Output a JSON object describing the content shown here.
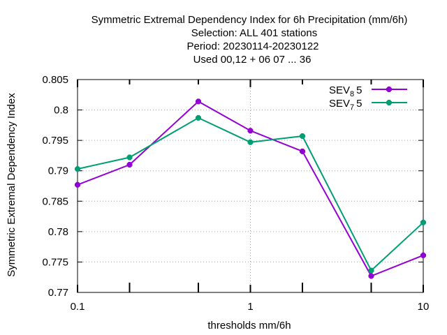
{
  "chart_data": {
    "type": "line",
    "title_lines": [
      "Symmetric Extremal Dependency Index  for 6h Precipitation (mm/6h)",
      "Selection: ALL    401 stations",
      "Period: 20230114-20230122",
      "Used  00,12  + 06 07 ... 36"
    ],
    "xlabel": "thresholds mm/6h",
    "ylabel": "Symmetric Extremal Dependency Index",
    "x_scale": "log",
    "xlim": [
      0.1,
      10
    ],
    "ylim": [
      0.77,
      0.805
    ],
    "x_ticks": [
      {
        "value": 0.1,
        "label": "0.1"
      },
      {
        "value": 1,
        "label": "1"
      },
      {
        "value": 10,
        "label": "10"
      }
    ],
    "x_minor_ticks": [
      0.2,
      0.5,
      2,
      5
    ],
    "y_ticks": [
      {
        "value": 0.77,
        "label": "0.77"
      },
      {
        "value": 0.775,
        "label": "0.775"
      },
      {
        "value": 0.78,
        "label": "0.78"
      },
      {
        "value": 0.785,
        "label": "0.785"
      },
      {
        "value": 0.79,
        "label": "0.79"
      },
      {
        "value": 0.795,
        "label": "0.795"
      },
      {
        "value": 0.8,
        "label": "0.8"
      },
      {
        "value": 0.805,
        "label": "0.805"
      }
    ],
    "grid": true,
    "legend_position": "top-right",
    "series": [
      {
        "name_base": "SEV",
        "name_sub": "8",
        "name_tail": "5",
        "color": "#9400d3",
        "x": [
          0.1,
          0.2,
          0.5,
          1,
          2,
          5,
          10
        ],
        "y": [
          0.7877,
          0.791,
          0.8014,
          0.7966,
          0.7932,
          0.7727,
          0.7761
        ]
      },
      {
        "name_base": "SEV",
        "name_sub": "7",
        "name_tail": "5",
        "color": "#009e73",
        "x": [
          0.1,
          0.2,
          0.5,
          1,
          2,
          5,
          10
        ],
        "y": [
          0.7903,
          0.7922,
          0.7987,
          0.7947,
          0.7957,
          0.7736,
          0.7815
        ]
      }
    ]
  }
}
